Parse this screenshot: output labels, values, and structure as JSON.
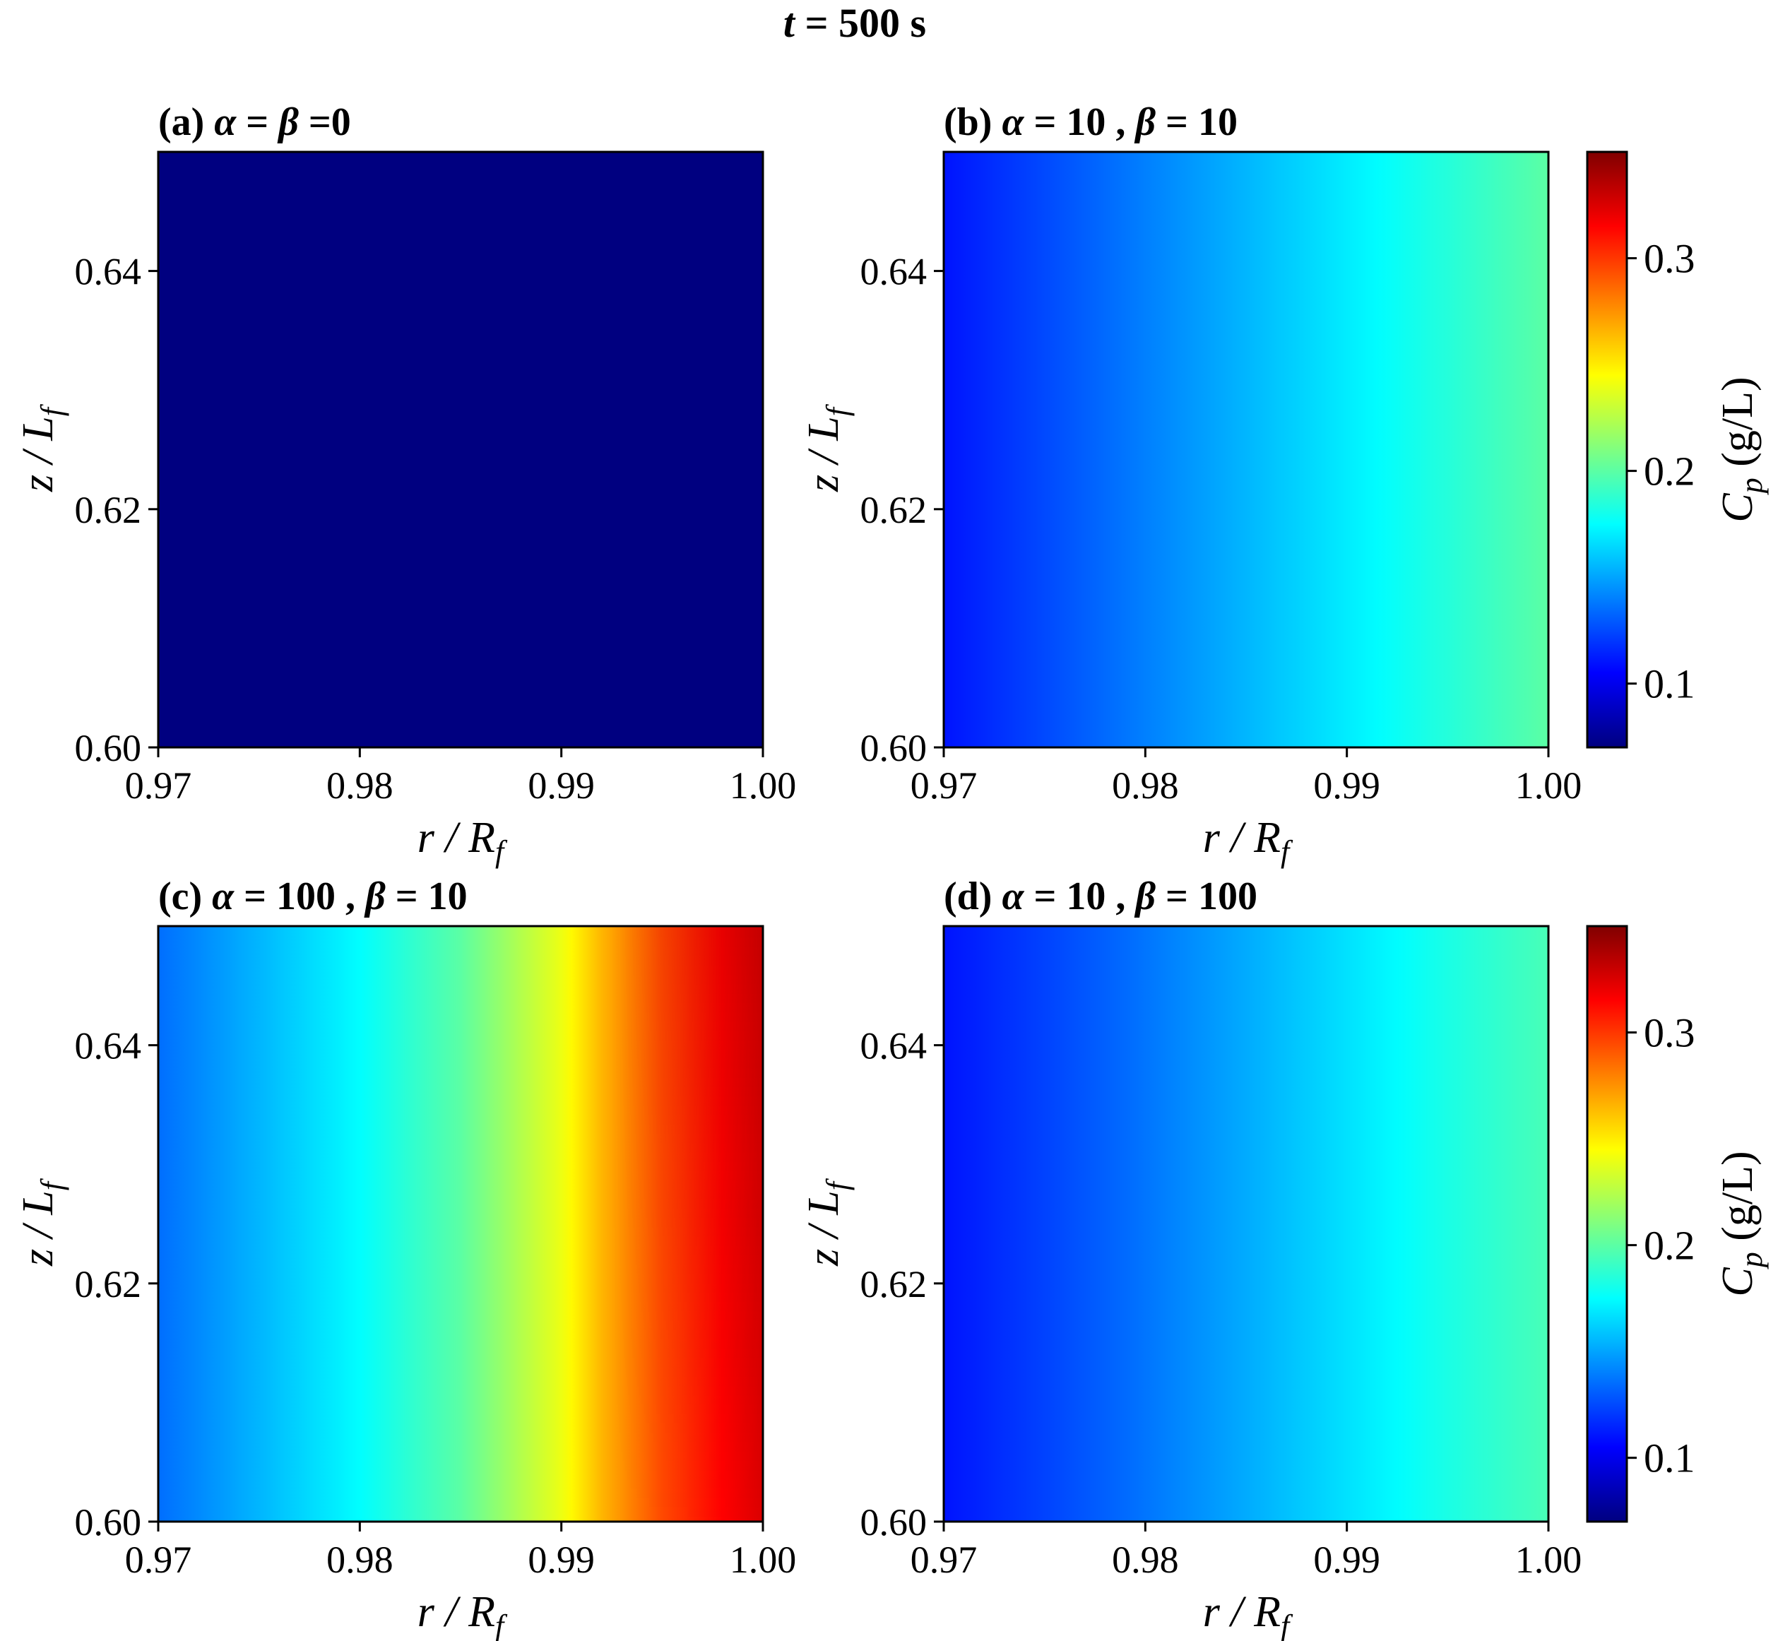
{
  "figure": {
    "title_var": "t",
    "title_rest": " = 500 s"
  },
  "chart_data": [
    {
      "type": "heatmap",
      "panel_prefix": "(a) ",
      "alpha": "0",
      "beta": "0",
      "title_style": "equal",
      "xlabel": "r / R_f",
      "ylabel": "z / L_f",
      "xlim": [
        0.97,
        1.0
      ],
      "ylim": [
        0.6,
        0.65
      ],
      "xticks": [
        "0.97",
        "0.98",
        "0.99",
        "1.00"
      ],
      "yticks": [
        "0.60",
        "0.62",
        "0.64"
      ],
      "profile": {
        "x": [
          0.97,
          1.0
        ],
        "cp": [
          0.07,
          0.07
        ]
      },
      "top_rise": 0
    },
    {
      "type": "heatmap",
      "panel_prefix": "(b) ",
      "alpha": "10",
      "beta": "10",
      "title_style": "pair",
      "xlabel": "r / R_f",
      "ylabel": "z / L_f",
      "xlim": [
        0.97,
        1.0
      ],
      "ylim": [
        0.6,
        0.65
      ],
      "xticks": [
        "0.97",
        "0.98",
        "0.99",
        "1.00"
      ],
      "yticks": [
        "0.60",
        "0.62",
        "0.64"
      ],
      "profile": {
        "x": [
          0.97,
          0.975,
          0.98,
          0.985,
          0.99,
          0.995,
          1.0
        ],
        "cp": [
          0.11,
          0.125,
          0.14,
          0.155,
          0.17,
          0.185,
          0.2
        ]
      },
      "top_rise": 0
    },
    {
      "type": "heatmap",
      "panel_prefix": "(c) ",
      "alpha": "100",
      "beta": "10",
      "title_style": "pair",
      "xlabel": "r / R_f",
      "ylabel": "z / L_f",
      "xlim": [
        0.97,
        1.0
      ],
      "ylim": [
        0.6,
        0.65
      ],
      "xticks": [
        "0.97",
        "0.98",
        "0.99",
        "1.00"
      ],
      "yticks": [
        "0.60",
        "0.62",
        "0.64"
      ],
      "profile": {
        "x": [
          0.97,
          0.975,
          0.98,
          0.985,
          0.99,
          0.992,
          0.995,
          0.998,
          1.0
        ],
        "cp": [
          0.135,
          0.155,
          0.175,
          0.2,
          0.24,
          0.265,
          0.295,
          0.315,
          0.325
        ]
      },
      "top_rise": 0.018
    },
    {
      "type": "heatmap",
      "panel_prefix": "(d) ",
      "alpha": "10",
      "beta": "100",
      "title_style": "pair",
      "xlabel": "r / R_f",
      "ylabel": "z / L_f",
      "xlim": [
        0.97,
        1.0
      ],
      "ylim": [
        0.6,
        0.65
      ],
      "xticks": [
        "0.97",
        "0.98",
        "0.99",
        "1.00"
      ],
      "yticks": [
        "0.60",
        "0.62",
        "0.64"
      ],
      "profile": {
        "x": [
          0.97,
          0.975,
          0.98,
          0.985,
          0.99,
          0.995,
          1.0
        ],
        "cp": [
          0.11,
          0.123,
          0.137,
          0.152,
          0.167,
          0.182,
          0.195
        ]
      },
      "top_rise": 0
    }
  ],
  "colorbar": {
    "label_var": "C",
    "label_sub": "p",
    "label_unit": " (g/L)",
    "range": [
      0.07,
      0.35
    ],
    "ticks": [
      0.1,
      0.2,
      0.3
    ],
    "tick_labels": [
      "0.1",
      "0.2",
      "0.3"
    ],
    "colormap": "jet"
  }
}
